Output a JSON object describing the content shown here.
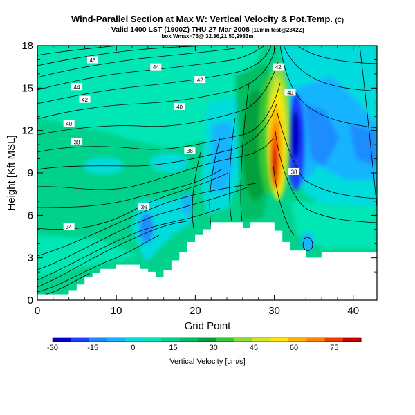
{
  "header": {
    "title": "Wind-Parallel Section at Max W: Vertical Velocity & Pot.Temp.",
    "title_unit": "(C)",
    "valid_line": "Valid 1400 LST (1900Z) THU 27 Mar 2008",
    "valid_line_small": "[10min fcst@2342Z]",
    "wmax_line": "box Wmax=76@ 32.36,21.50,2983m"
  },
  "chart_data": {
    "type": "heatmap",
    "xlabel": "Grid Point",
    "ylabel": "Height [Kft MSL]",
    "xlim": [
      0,
      43
    ],
    "ylim": [
      0,
      18
    ],
    "x_ticks": [
      "0",
      "10",
      "20",
      "30",
      "40"
    ],
    "y_ticks": [
      "0",
      "3",
      "6",
      "9",
      "12",
      "15",
      "18"
    ],
    "colorbar": {
      "label": "Vertical Velocity [cm/s]",
      "range": [
        -30,
        85
      ],
      "tick_labels": [
        "-30",
        "-15",
        "0",
        "15",
        "30",
        "45",
        "60",
        "75"
      ],
      "tick_values": [
        -30,
        -15,
        0,
        15,
        30,
        45,
        60,
        75
      ],
      "colors": [
        "#0000c8",
        "#1e3cff",
        "#1e8cff",
        "#14b4ff",
        "#00dcdc",
        "#00e6b4",
        "#00d28c",
        "#00be64",
        "#00a03c",
        "#32c832",
        "#8cdc3c",
        "#d2e628",
        "#ffe600",
        "#ffb400",
        "#ff8200",
        "#f03c00",
        "#c80000"
      ]
    },
    "terrain_profile": [
      {
        "x": 0,
        "h": 0.4
      },
      {
        "x": 3,
        "h": 0.4
      },
      {
        "x": 4,
        "h": 0.7
      },
      {
        "x": 5,
        "h": 1.1
      },
      {
        "x": 6,
        "h": 1.6
      },
      {
        "x": 7,
        "h": 1.9
      },
      {
        "x": 8,
        "h": 2.2
      },
      {
        "x": 10,
        "h": 2.5
      },
      {
        "x": 12,
        "h": 2.5
      },
      {
        "x": 13,
        "h": 2.2
      },
      {
        "x": 14,
        "h": 2.0
      },
      {
        "x": 15,
        "h": 1.6
      },
      {
        "x": 16,
        "h": 2.1
      },
      {
        "x": 17,
        "h": 2.8
      },
      {
        "x": 18,
        "h": 3.4
      },
      {
        "x": 19,
        "h": 4.1
      },
      {
        "x": 20,
        "h": 4.6
      },
      {
        "x": 21,
        "h": 5.0
      },
      {
        "x": 22,
        "h": 5.5
      },
      {
        "x": 25,
        "h": 5.5
      },
      {
        "x": 26,
        "h": 5.1
      },
      {
        "x": 27,
        "h": 5.5
      },
      {
        "x": 29,
        "h": 5.5
      },
      {
        "x": 30,
        "h": 4.9
      },
      {
        "x": 31,
        "h": 4.1
      },
      {
        "x": 32,
        "h": 3.5
      },
      {
        "x": 34,
        "h": 3.0
      },
      {
        "x": 36,
        "h": 3.4
      },
      {
        "x": 43,
        "h": 3.4
      }
    ],
    "contours": [
      {
        "label": "34",
        "label_x": 4,
        "label_y": 5.2
      },
      {
        "label": "36",
        "label_x": 13.5,
        "label_y": 6.6
      },
      {
        "label": "38",
        "label_x": 5,
        "label_y": 11.2
      },
      {
        "label": "38",
        "label_x": 19.3,
        "label_y": 10.6
      },
      {
        "label": "38",
        "label_x": 32.5,
        "label_y": 9.1
      },
      {
        "label": "40",
        "label_x": 4.0,
        "label_y": 12.5
      },
      {
        "label": "40",
        "label_x": 18,
        "label_y": 13.7
      },
      {
        "label": "40",
        "label_x": 32.0,
        "label_y": 14.7
      },
      {
        "label": "42",
        "label_x": 6,
        "label_y": 14.2
      },
      {
        "label": "42",
        "label_x": 20.6,
        "label_y": 15.6
      },
      {
        "label": "42",
        "label_x": 30.5,
        "label_y": 16.5
      },
      {
        "label": "44",
        "label_x": 5,
        "label_y": 15.1
      },
      {
        "label": "44",
        "label_x": 15,
        "label_y": 16.5
      },
      {
        "label": "46",
        "label_x": 7,
        "label_y": 17.0
      }
    ]
  }
}
